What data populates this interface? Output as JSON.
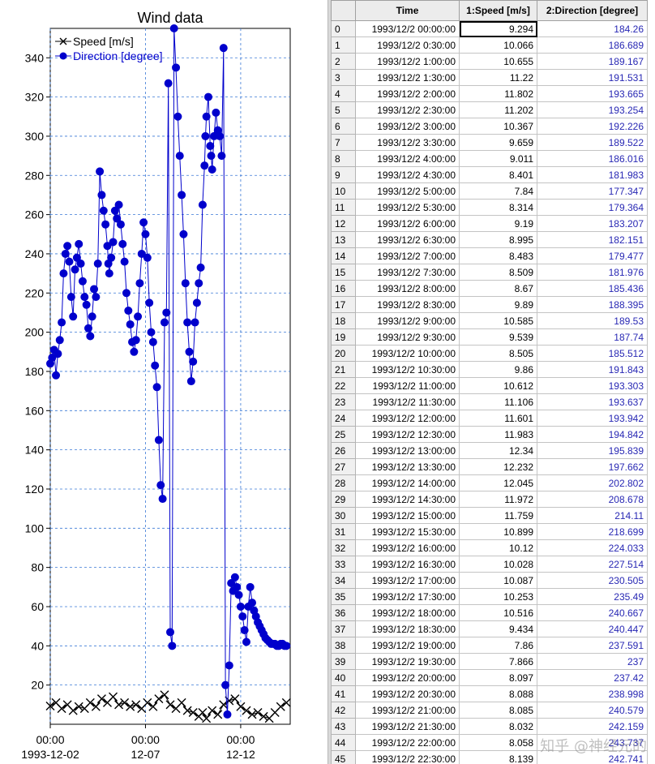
{
  "chart_data": {
    "type": "line",
    "title": "Wind data",
    "xlabel": "",
    "ylabel": "",
    "ylim": [
      0,
      355
    ],
    "yticks": [
      20,
      40,
      60,
      80,
      100,
      120,
      140,
      160,
      180,
      200,
      220,
      240,
      260,
      280,
      300,
      320,
      340
    ],
    "xlim_days": [
      0,
      12.6
    ],
    "xticks": [
      {
        "day": 0,
        "time": "00:00",
        "date": "1993-12-02"
      },
      {
        "day": 5,
        "time": "00:00",
        "date": "12-07"
      },
      {
        "day": 10,
        "time": "00:00",
        "date": "12-12"
      }
    ],
    "grid": true,
    "legend_position": "top-left",
    "series": [
      {
        "name": "Speed [m/s]",
        "color": "#000000",
        "marker": "x",
        "x": [
          0,
          0.3,
          0.6,
          0.9,
          1.2,
          1.5,
          1.8,
          2.1,
          2.4,
          2.7,
          3.0,
          3.3,
          3.6,
          3.9,
          4.2,
          4.5,
          4.8,
          5.1,
          5.4,
          5.7,
          6.0,
          6.3,
          6.6,
          6.9,
          7.2,
          7.5,
          7.8,
          8.0,
          8.2,
          8.5,
          8.8,
          9.1,
          9.4,
          9.7,
          10.0,
          10.3,
          10.6,
          10.9,
          11.2,
          11.5,
          11.8,
          12.1,
          12.4
        ],
        "y": [
          9.3,
          11,
          8,
          10,
          7,
          9,
          8,
          11,
          9,
          13,
          11,
          14,
          10,
          11,
          9,
          10,
          8,
          11,
          9,
          13,
          15,
          10,
          8,
          11,
          7,
          6,
          4,
          6,
          3,
          7,
          5,
          10,
          12,
          13,
          9,
          7,
          5,
          6,
          4,
          3,
          6,
          9,
          11
        ]
      },
      {
        "name": "Direction  [degree]",
        "color": "#0000cc",
        "marker": "o",
        "x": [
          0,
          0.1,
          0.2,
          0.3,
          0.4,
          0.5,
          0.6,
          0.7,
          0.8,
          0.9,
          1.0,
          1.1,
          1.2,
          1.3,
          1.4,
          1.5,
          1.6,
          1.7,
          1.8,
          1.9,
          2.0,
          2.1,
          2.2,
          2.3,
          2.4,
          2.5,
          2.6,
          2.7,
          2.8,
          2.9,
          3.0,
          3.05,
          3.1,
          3.2,
          3.3,
          3.4,
          3.5,
          3.6,
          3.7,
          3.8,
          3.9,
          4.0,
          4.1,
          4.2,
          4.3,
          4.4,
          4.5,
          4.6,
          4.7,
          4.8,
          4.9,
          5.0,
          5.1,
          5.2,
          5.3,
          5.4,
          5.5,
          5.6,
          5.7,
          5.8,
          5.9,
          6.0,
          6.1,
          6.2,
          6.3,
          6.4,
          6.5,
          6.6,
          6.7,
          6.8,
          6.9,
          7.0,
          7.1,
          7.2,
          7.3,
          7.4,
          7.5,
          7.6,
          7.7,
          7.8,
          7.9,
          8.0,
          8.1,
          8.15,
          8.2,
          8.3,
          8.4,
          8.45,
          8.5,
          8.6,
          8.7,
          8.8,
          8.9,
          9.0,
          9.1,
          9.2,
          9.3,
          9.4,
          9.5,
          9.6,
          9.7,
          9.8,
          9.9,
          10.0,
          10.1,
          10.2,
          10.3,
          10.4,
          10.5,
          10.6,
          10.7,
          10.8,
          10.9,
          11.0,
          11.1,
          11.2,
          11.3,
          11.4,
          11.5,
          11.6,
          11.7,
          11.8,
          11.9,
          12.0,
          12.1,
          12.2,
          12.3,
          12.4
        ],
        "y": [
          184,
          187,
          191,
          178,
          189,
          196,
          205,
          230,
          240,
          244,
          236,
          218,
          208,
          232,
          238,
          245,
          235,
          226,
          218,
          214,
          202,
          198,
          208,
          222,
          218,
          235,
          282,
          270,
          262,
          255,
          244,
          235,
          230,
          238,
          246,
          262,
          258,
          265,
          255,
          245,
          236,
          220,
          211,
          204,
          195,
          190,
          196,
          208,
          225,
          240,
          256,
          250,
          238,
          215,
          200,
          195,
          183,
          172,
          145,
          122,
          115,
          205,
          210,
          327,
          47,
          40,
          355,
          335,
          310,
          290,
          270,
          250,
          225,
          205,
          190,
          175,
          185,
          205,
          215,
          225,
          233,
          265,
          285,
          300,
          310,
          320,
          295,
          290,
          283,
          300,
          312,
          303,
          300,
          290,
          345,
          20,
          5,
          30,
          72,
          68,
          75,
          70,
          66,
          60,
          55,
          48,
          42,
          60,
          70,
          62,
          58,
          55,
          52,
          50,
          48,
          46,
          44,
          43,
          42,
          41,
          41,
          41,
          40,
          40,
          41,
          41,
          40,
          40
        ]
      }
    ]
  },
  "table": {
    "headers": [
      "",
      "Time",
      "1:Speed [m/s]",
      "2:Direction  [degree]"
    ],
    "rows": [
      [
        "0",
        "1993/12/2 00:00:00",
        "9.294",
        "184.26"
      ],
      [
        "1",
        "1993/12/2 0:30:00",
        "10.066",
        "186.689"
      ],
      [
        "2",
        "1993/12/2 1:00:00",
        "10.655",
        "189.167"
      ],
      [
        "3",
        "1993/12/2 1:30:00",
        "11.22",
        "191.531"
      ],
      [
        "4",
        "1993/12/2 2:00:00",
        "11.802",
        "193.665"
      ],
      [
        "5",
        "1993/12/2 2:30:00",
        "11.202",
        "193.254"
      ],
      [
        "6",
        "1993/12/2 3:00:00",
        "10.367",
        "192.226"
      ],
      [
        "7",
        "1993/12/2 3:30:00",
        "9.659",
        "189.522"
      ],
      [
        "8",
        "1993/12/2 4:00:00",
        "9.011",
        "186.016"
      ],
      [
        "9",
        "1993/12/2 4:30:00",
        "8.401",
        "181.983"
      ],
      [
        "10",
        "1993/12/2 5:00:00",
        "7.84",
        "177.347"
      ],
      [
        "11",
        "1993/12/2 5:30:00",
        "8.314",
        "179.364"
      ],
      [
        "12",
        "1993/12/2 6:00:00",
        "9.19",
        "183.207"
      ],
      [
        "13",
        "1993/12/2 6:30:00",
        "8.995",
        "182.151"
      ],
      [
        "14",
        "1993/12/2 7:00:00",
        "8.483",
        "179.477"
      ],
      [
        "15",
        "1993/12/2 7:30:00",
        "8.509",
        "181.976"
      ],
      [
        "16",
        "1993/12/2 8:00:00",
        "8.67",
        "185.436"
      ],
      [
        "17",
        "1993/12/2 8:30:00",
        "9.89",
        "188.395"
      ],
      [
        "18",
        "1993/12/2 9:00:00",
        "10.585",
        "189.53"
      ],
      [
        "19",
        "1993/12/2 9:30:00",
        "9.539",
        "187.74"
      ],
      [
        "20",
        "1993/12/2 10:00:00",
        "8.505",
        "185.512"
      ],
      [
        "21",
        "1993/12/2 10:30:00",
        "9.86",
        "191.843"
      ],
      [
        "22",
        "1993/12/2 11:00:00",
        "10.612",
        "193.303"
      ],
      [
        "23",
        "1993/12/2 11:30:00",
        "11.106",
        "193.637"
      ],
      [
        "24",
        "1993/12/2 12:00:00",
        "11.601",
        "193.942"
      ],
      [
        "25",
        "1993/12/2 12:30:00",
        "11.983",
        "194.842"
      ],
      [
        "26",
        "1993/12/2 13:00:00",
        "12.34",
        "195.839"
      ],
      [
        "27",
        "1993/12/2 13:30:00",
        "12.232",
        "197.662"
      ],
      [
        "28",
        "1993/12/2 14:00:00",
        "12.045",
        "202.802"
      ],
      [
        "29",
        "1993/12/2 14:30:00",
        "11.972",
        "208.678"
      ],
      [
        "30",
        "1993/12/2 15:00:00",
        "11.759",
        "214.11"
      ],
      [
        "31",
        "1993/12/2 15:30:00",
        "10.899",
        "218.699"
      ],
      [
        "32",
        "1993/12/2 16:00:00",
        "10.12",
        "224.033"
      ],
      [
        "33",
        "1993/12/2 16:30:00",
        "10.028",
        "227.514"
      ],
      [
        "34",
        "1993/12/2 17:00:00",
        "10.087",
        "230.505"
      ],
      [
        "35",
        "1993/12/2 17:30:00",
        "10.253",
        "235.49"
      ],
      [
        "36",
        "1993/12/2 18:00:00",
        "10.516",
        "240.667"
      ],
      [
        "37",
        "1993/12/2 18:30:00",
        "9.434",
        "240.447"
      ],
      [
        "38",
        "1993/12/2 19:00:00",
        "7.86",
        "237.591"
      ],
      [
        "39",
        "1993/12/2 19:30:00",
        "7.866",
        "237"
      ],
      [
        "40",
        "1993/12/2 20:00:00",
        "8.097",
        "237.42"
      ],
      [
        "41",
        "1993/12/2 20:30:00",
        "8.088",
        "238.998"
      ],
      [
        "42",
        "1993/12/2 21:00:00",
        "8.085",
        "240.579"
      ],
      [
        "43",
        "1993/12/2 21:30:00",
        "8.032",
        "242.159"
      ],
      [
        "44",
        "1993/12/2 22:00:00",
        "8.058",
        "243.737"
      ],
      [
        "45",
        "1993/12/2 22:30:00",
        "8.139",
        "242.741"
      ]
    ],
    "selected_row": 0
  },
  "watermark": "知乎 @神经元的"
}
